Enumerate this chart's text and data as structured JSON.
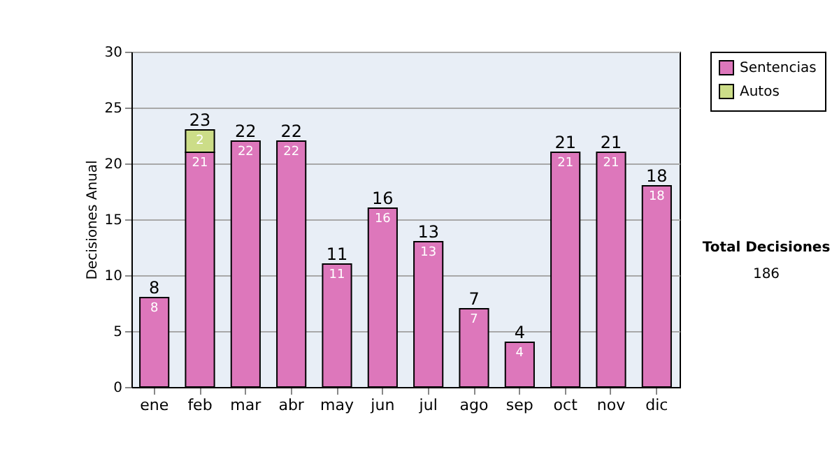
{
  "chart_data": {
    "type": "bar",
    "stacked": true,
    "ylabel": "Decisiones Anual",
    "categories": [
      "ene",
      "feb",
      "mar",
      "abr",
      "may",
      "jun",
      "jul",
      "ago",
      "sep",
      "oct",
      "nov",
      "dic"
    ],
    "series": [
      {
        "name": "Sentencias",
        "color": "#dd77bb",
        "values": [
          8,
          21,
          22,
          22,
          11,
          16,
          13,
          7,
          4,
          21,
          21,
          18
        ]
      },
      {
        "name": "Autos",
        "color": "#ccdd88",
        "values": [
          null,
          2,
          null,
          null,
          null,
          null,
          null,
          null,
          null,
          null,
          null,
          null
        ]
      }
    ],
    "totals": [
      "8",
      "23",
      "22",
      "22",
      "11",
      "16",
      "13",
      "7",
      "4",
      "21",
      "21",
      "18"
    ],
    "data_labels": true,
    "ylim": [
      0,
      30
    ],
    "yticks": [
      0,
      5,
      10,
      15,
      20,
      25,
      30
    ],
    "grid": "y",
    "legend": "right",
    "annotations": [
      "Total Decisiones",
      "186"
    ]
  }
}
